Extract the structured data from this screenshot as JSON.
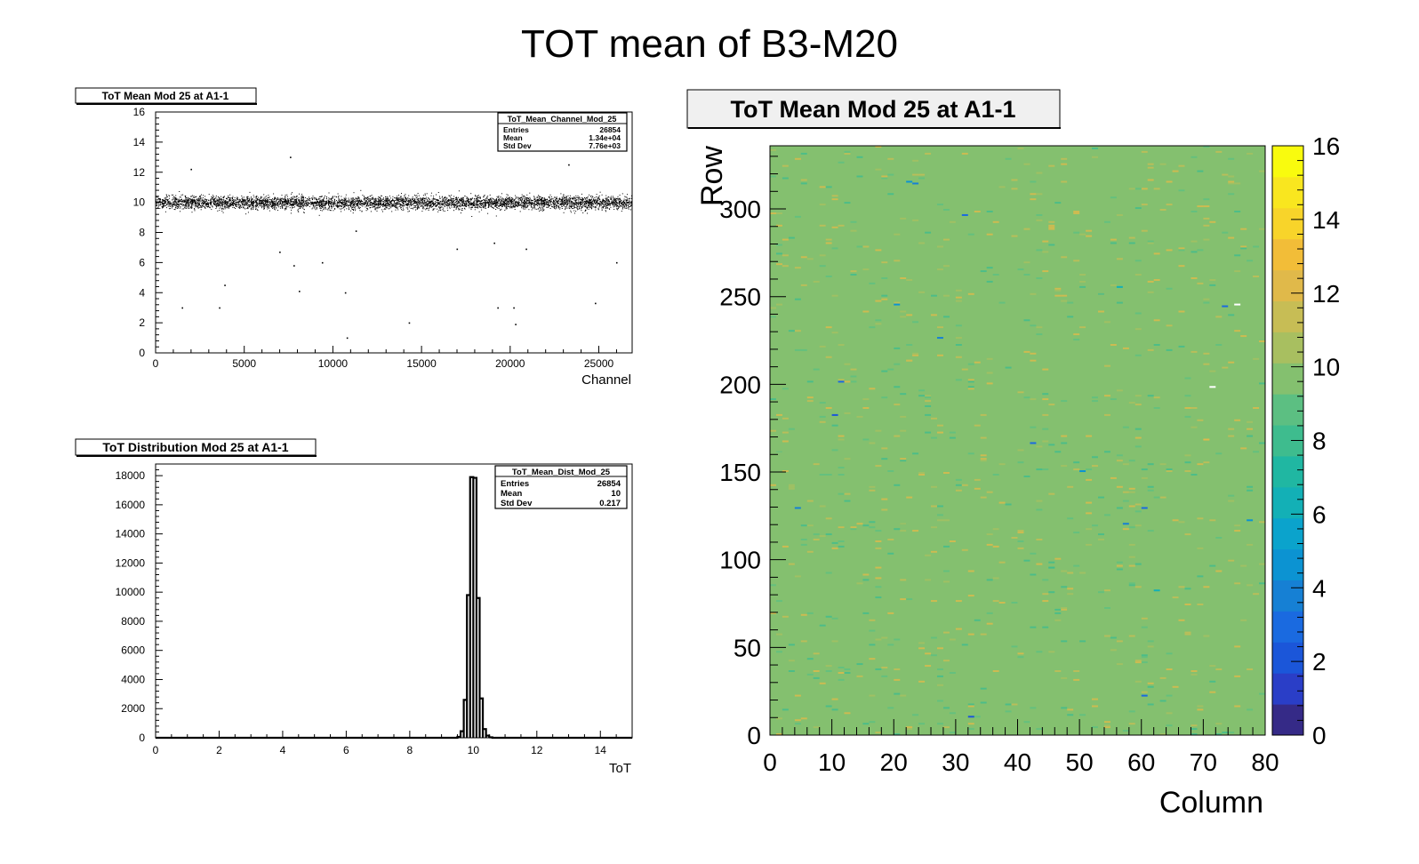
{
  "page_title": "TOT mean of B3-M20",
  "chart_data": [
    {
      "id": "scatter",
      "type": "scatter",
      "title": "ToT Mean Mod 25 at A1-1",
      "xlabel": "Channel",
      "ylabel": "",
      "xlim": [
        0,
        26880
      ],
      "ylim": [
        0,
        16
      ],
      "x_ticks": [
        0,
        5000,
        10000,
        15000,
        20000,
        25000
      ],
      "y_ticks": [
        0,
        2,
        4,
        6,
        8,
        10,
        12,
        14,
        16
      ],
      "band": {
        "center": 10,
        "spread": 0.217,
        "channels": 26854
      },
      "outliers": [
        {
          "x": 1500,
          "y": 3
        },
        {
          "x": 2000,
          "y": 12.2
        },
        {
          "x": 3600,
          "y": 3
        },
        {
          "x": 3900,
          "y": 4.5
        },
        {
          "x": 7000,
          "y": 6.7
        },
        {
          "x": 7600,
          "y": 13
        },
        {
          "x": 7800,
          "y": 5.8
        },
        {
          "x": 8100,
          "y": 4.1
        },
        {
          "x": 9400,
          "y": 6
        },
        {
          "x": 10700,
          "y": 4.0
        },
        {
          "x": 10800,
          "y": 1.0
        },
        {
          "x": 11300,
          "y": 8.1
        },
        {
          "x": 14300,
          "y": 2.0
        },
        {
          "x": 17000,
          "y": 6.9
        },
        {
          "x": 19100,
          "y": 7.3
        },
        {
          "x": 19300,
          "y": 3.0
        },
        {
          "x": 20200,
          "y": 3.0
        },
        {
          "x": 20300,
          "y": 1.9
        },
        {
          "x": 20900,
          "y": 6.9
        },
        {
          "x": 23300,
          "y": 12.5
        },
        {
          "x": 24800,
          "y": 3.3
        },
        {
          "x": 26000,
          "y": 6.0
        }
      ],
      "stats": {
        "name": "ToT_Mean_Channel_Mod_25",
        "rows": [
          {
            "label": "Entries",
            "value": "26854"
          },
          {
            "label": "Mean",
            "value": "1.34e+04"
          },
          {
            "label": "Std Dev",
            "value": "7.76e+03"
          }
        ]
      }
    },
    {
      "id": "histogram",
      "type": "bar",
      "title": "ToT Distribution Mod 25 at A1-1",
      "xlabel": "ToT",
      "ylabel": "",
      "xlim": [
        0,
        15
      ],
      "ylim": [
        0,
        18800
      ],
      "x_ticks": [
        0,
        2,
        4,
        6,
        8,
        10,
        12,
        14
      ],
      "y_ticks": [
        0,
        2000,
        4000,
        6000,
        8000,
        10000,
        12000,
        14000,
        16000,
        18000
      ],
      "bins": [
        {
          "x": 9.5,
          "w": 0.1,
          "y": 60
        },
        {
          "x": 9.6,
          "w": 0.1,
          "y": 450
        },
        {
          "x": 9.7,
          "w": 0.1,
          "y": 2600
        },
        {
          "x": 9.8,
          "w": 0.1,
          "y": 9800
        },
        {
          "x": 9.9,
          "w": 0.1,
          "y": 17900
        },
        {
          "x": 10.0,
          "w": 0.1,
          "y": 17850
        },
        {
          "x": 10.1,
          "w": 0.1,
          "y": 9600
        },
        {
          "x": 10.2,
          "w": 0.1,
          "y": 2700
        },
        {
          "x": 10.3,
          "w": 0.1,
          "y": 600
        },
        {
          "x": 10.4,
          "w": 0.1,
          "y": 150
        },
        {
          "x": 10.5,
          "w": 0.1,
          "y": 30
        }
      ],
      "stats": {
        "name": "ToT_Mean_Dist_Mod_25",
        "rows": [
          {
            "label": "Entries",
            "value": "26854"
          },
          {
            "label": "Mean",
            "value": "10"
          },
          {
            "label": "Std Dev",
            "value": "0.217"
          }
        ]
      }
    },
    {
      "id": "heatmap",
      "type": "heatmap",
      "title": "ToT Mean Mod 25 at A1-1",
      "xlabel": "Column",
      "ylabel": "Row",
      "xlim": [
        0,
        80
      ],
      "ylim": [
        0,
        336
      ],
      "zlim": [
        0,
        16
      ],
      "x_ticks": [
        0,
        10,
        20,
        30,
        40,
        50,
        60,
        70,
        80
      ],
      "y_ticks": [
        0,
        50,
        100,
        150,
        200,
        250,
        300
      ],
      "z_ticks": [
        0,
        2,
        4,
        6,
        8,
        10,
        12,
        14,
        16
      ],
      "background_value": 10,
      "special_cells": [
        {
          "col": 22,
          "row": 315,
          "z": 5
        },
        {
          "col": 23,
          "row": 314,
          "z": 4
        },
        {
          "col": 31,
          "row": 296,
          "z": 3
        },
        {
          "col": 20,
          "row": 245,
          "z": 5
        },
        {
          "col": 27,
          "row": 226,
          "z": 4
        },
        {
          "col": 11,
          "row": 201,
          "z": 3
        },
        {
          "col": 10,
          "row": 182,
          "z": 2
        },
        {
          "col": 42,
          "row": 166,
          "z": 3
        },
        {
          "col": 50,
          "row": 150,
          "z": 5
        },
        {
          "col": 4,
          "row": 129,
          "z": 4
        },
        {
          "col": 60,
          "row": 129,
          "z": 3
        },
        {
          "col": 57,
          "row": 120,
          "z": 4
        },
        {
          "col": 77,
          "row": 122,
          "z": 5
        },
        {
          "col": 62,
          "row": 82,
          "z": 6
        },
        {
          "col": 60,
          "row": 22,
          "z": 3
        },
        {
          "col": 32,
          "row": 10,
          "z": 2
        },
        {
          "col": 73,
          "row": 244,
          "z": 3
        },
        {
          "col": 56,
          "row": 255,
          "z": 6
        },
        {
          "col": 70,
          "row": 168,
          "z": 12
        },
        {
          "col": 75,
          "row": 245,
          "z": 16.5
        },
        {
          "col": 71,
          "row": 198,
          "z": 16.5
        }
      ],
      "palette": [
        "#352a87",
        "#2a3ec7",
        "#1b56d9",
        "#1a6ae0",
        "#1680d4",
        "#0c93d2",
        "#0ba3cc",
        "#13b0b6",
        "#20b7a2",
        "#3ebc8e",
        "#5cbf82",
        "#84c06f",
        "#a8bf60",
        "#c7bd55",
        "#e0b94a",
        "#f2bd38",
        "#f8d42a",
        "#f9e61f",
        "#f9fb0e"
      ]
    }
  ]
}
